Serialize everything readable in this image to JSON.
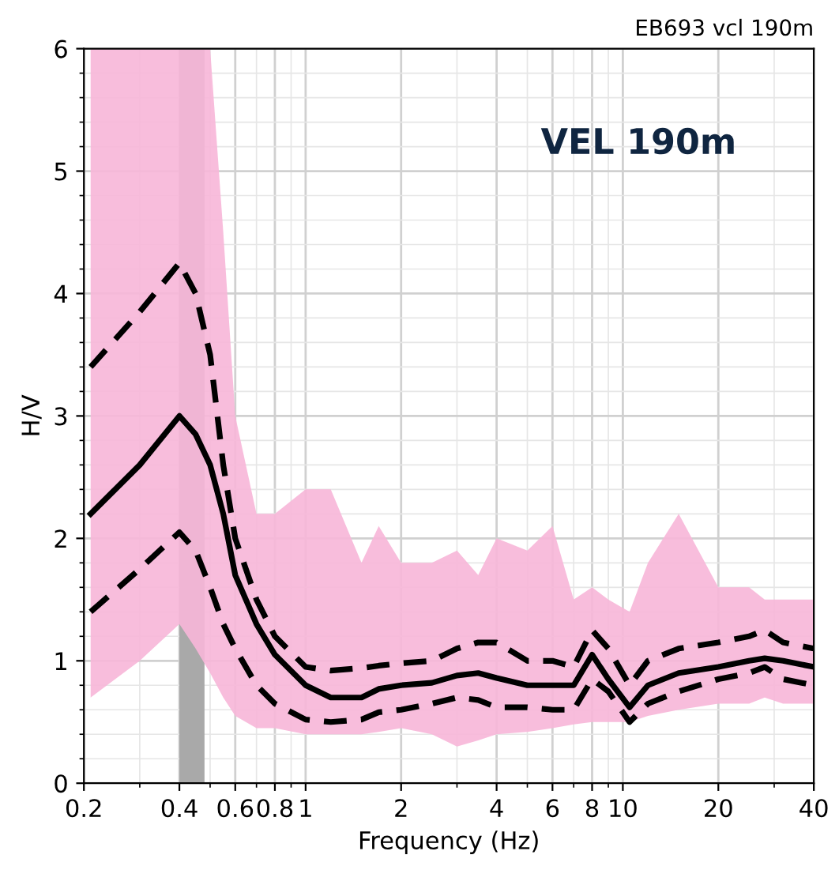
{
  "chart_data": {
    "type": "line",
    "title": "EB693 vcl 190m",
    "xlabel": "Frequency (Hz)",
    "ylabel": "H/V",
    "annotations": [
      "VEL 190m"
    ],
    "x": [
      0.21,
      0.3,
      0.4,
      0.45,
      0.5,
      0.55,
      0.6,
      0.7,
      0.8,
      1,
      1.2,
      1.5,
      1.7,
      2,
      2.5,
      3,
      3.5,
      4,
      5,
      6,
      7,
      8,
      9,
      10.5,
      12,
      15,
      20,
      25,
      28,
      32,
      40
    ],
    "series": [
      {
        "color": "#000000",
        "line_style": "solid",
        "values": [
          2.2,
          2.6,
          3.0,
          2.85,
          2.6,
          2.2,
          1.7,
          1.3,
          1.05,
          0.8,
          0.7,
          0.7,
          0.77,
          0.8,
          0.82,
          0.88,
          0.9,
          0.86,
          0.8,
          0.8,
          0.8,
          1.05,
          0.85,
          0.62,
          0.8,
          0.9,
          0.95,
          1.0,
          1.02,
          1.0,
          0.95
        ],
        "lower": [
          0.7,
          1.0,
          1.3,
          1.1,
          0.9,
          0.7,
          0.55,
          0.45,
          0.45,
          0.4,
          0.4,
          0.4,
          0.42,
          0.45,
          0.4,
          0.3,
          0.35,
          0.4,
          0.42,
          0.45,
          0.48,
          0.5,
          0.5,
          0.5,
          0.55,
          0.6,
          0.65,
          0.65,
          0.7,
          0.65,
          0.65
        ],
        "upper": [
          6,
          6,
          6,
          6,
          6,
          4.5,
          3.0,
          2.2,
          2.2,
          2.4,
          2.4,
          1.8,
          2.1,
          1.8,
          1.8,
          1.9,
          1.7,
          2.0,
          1.9,
          2.1,
          1.5,
          1.6,
          1.5,
          1.4,
          1.8,
          2.2,
          1.6,
          1.6,
          1.5,
          1.5,
          1.5
        ]
      },
      {
        "color": "#000000",
        "line_style": "dashed",
        "values": [
          3.4,
          3.85,
          4.25,
          4.0,
          3.5,
          2.6,
          2.0,
          1.5,
          1.2,
          0.95,
          0.92,
          0.94,
          0.96,
          0.98,
          1.0,
          1.1,
          1.15,
          1.15,
          1.0,
          1.0,
          0.95,
          1.25,
          1.1,
          0.8,
          1.0,
          1.1,
          1.15,
          1.2,
          1.25,
          1.15,
          1.1
        ]
      },
      {
        "color": "#000000",
        "line_style": "dashed",
        "values": [
          1.4,
          1.75,
          2.05,
          1.9,
          1.6,
          1.3,
          1.1,
          0.8,
          0.65,
          0.52,
          0.5,
          0.52,
          0.58,
          0.6,
          0.65,
          0.7,
          0.68,
          0.62,
          0.62,
          0.6,
          0.6,
          0.85,
          0.75,
          0.5,
          0.65,
          0.75,
          0.85,
          0.9,
          0.95,
          0.85,
          0.8
        ]
      }
    ],
    "bands": [
      {
        "axis": "x",
        "from": 0.4,
        "to": 0.48,
        "color": "#a9a9a9"
      }
    ],
    "log": "x",
    "xlim": [
      0.2,
      40
    ],
    "xticks": [
      0.2,
      0.4,
      0.6,
      0.8,
      1,
      2,
      4,
      6,
      8,
      10,
      20,
      40
    ],
    "ylim": [
      0,
      6
    ],
    "yticks": [
      0,
      1,
      2,
      3,
      4,
      5,
      6
    ],
    "grid": true,
    "marker": "none"
  }
}
